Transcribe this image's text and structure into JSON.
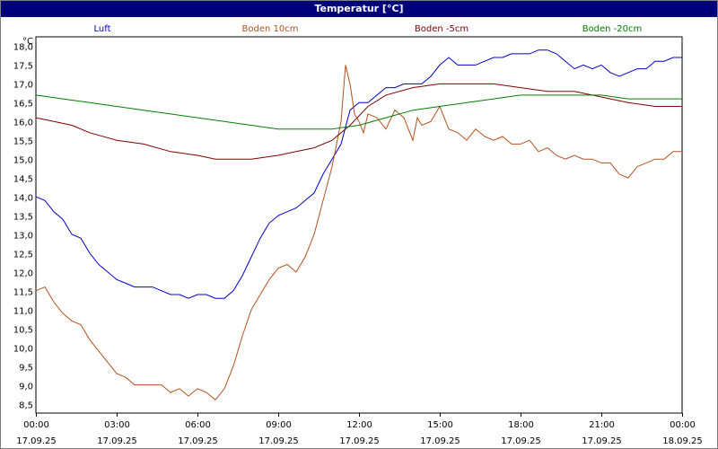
{
  "window": {
    "title": "Temperatur [°C]"
  },
  "chart_data": {
    "type": "line",
    "title": "Temperatur [°C]",
    "ylabel": "°C",
    "xlabel": "",
    "ylim": [
      8.25,
      18.25
    ],
    "xlim": [
      "17.09.25 00:00",
      "18.09.25 00:00"
    ],
    "grid": true,
    "legend_position": "top",
    "y_ticks": [
      "18,0",
      "17,5",
      "17,0",
      "16,5",
      "16,0",
      "15,5",
      "15,0",
      "14,5",
      "14,0",
      "13,5",
      "13,0",
      "12,5",
      "12,0",
      "11,5",
      "11,0",
      "10,5",
      "10,0",
      "9,5",
      "9,0",
      "8,5"
    ],
    "x_ticks": [
      {
        "time": "00:00",
        "date": "17.09.25"
      },
      {
        "time": "03:00",
        "date": "17.09.25"
      },
      {
        "time": "06:00",
        "date": "17.09.25"
      },
      {
        "time": "09:00",
        "date": "17.09.25"
      },
      {
        "time": "12:00",
        "date": "17.09.25"
      },
      {
        "time": "15:00",
        "date": "17.09.25"
      },
      {
        "time": "18:00",
        "date": "17.09.25"
      },
      {
        "time": "21:00",
        "date": "17.09.25"
      },
      {
        "time": "00:00",
        "date": "18.09.25"
      }
    ],
    "series": [
      {
        "name": "Luft",
        "color": "#0000c8",
        "points": [
          [
            "17.09.25 00:00",
            14.0
          ],
          [
            "17.09.25 00:20",
            13.9
          ],
          [
            "17.09.25 00:40",
            13.6
          ],
          [
            "17.09.25 01:00",
            13.4
          ],
          [
            "17.09.25 01:20",
            13.0
          ],
          [
            "17.09.25 01:40",
            12.9
          ],
          [
            "17.09.25 02:00",
            12.5
          ],
          [
            "17.09.25 02:20",
            12.2
          ],
          [
            "17.09.25 02:40",
            12.0
          ],
          [
            "17.09.25 03:00",
            11.8
          ],
          [
            "17.09.25 03:20",
            11.7
          ],
          [
            "17.09.25 03:40",
            11.6
          ],
          [
            "17.09.25 04:00",
            11.6
          ],
          [
            "17.09.25 04:20",
            11.6
          ],
          [
            "17.09.25 04:40",
            11.5
          ],
          [
            "17.09.25 05:00",
            11.4
          ],
          [
            "17.09.25 05:20",
            11.4
          ],
          [
            "17.09.25 05:40",
            11.3
          ],
          [
            "17.09.25 06:00",
            11.4
          ],
          [
            "17.09.25 06:20",
            11.4
          ],
          [
            "17.09.25 06:40",
            11.3
          ],
          [
            "17.09.25 07:00",
            11.3
          ],
          [
            "17.09.25 07:20",
            11.5
          ],
          [
            "17.09.25 07:40",
            11.9
          ],
          [
            "17.09.25 08:00",
            12.4
          ],
          [
            "17.09.25 08:20",
            12.9
          ],
          [
            "17.09.25 08:40",
            13.3
          ],
          [
            "17.09.25 09:00",
            13.5
          ],
          [
            "17.09.25 09:20",
            13.6
          ],
          [
            "17.09.25 09:40",
            13.7
          ],
          [
            "17.09.25 10:00",
            13.9
          ],
          [
            "17.09.25 10:20",
            14.1
          ],
          [
            "17.09.25 10:40",
            14.6
          ],
          [
            "17.09.25 11:00",
            15.0
          ],
          [
            "17.09.25 11:20",
            15.4
          ],
          [
            "17.09.25 11:40",
            16.3
          ],
          [
            "17.09.25 12:00",
            16.5
          ],
          [
            "17.09.25 12:20",
            16.5
          ],
          [
            "17.09.25 12:40",
            16.7
          ],
          [
            "17.09.25 13:00",
            16.9
          ],
          [
            "17.09.25 13:20",
            16.9
          ],
          [
            "17.09.25 13:40",
            17.0
          ],
          [
            "17.09.25 14:00",
            17.0
          ],
          [
            "17.09.25 14:20",
            17.0
          ],
          [
            "17.09.25 14:40",
            17.2
          ],
          [
            "17.09.25 15:00",
            17.5
          ],
          [
            "17.09.25 15:20",
            17.7
          ],
          [
            "17.09.25 15:40",
            17.5
          ],
          [
            "17.09.25 16:00",
            17.5
          ],
          [
            "17.09.25 16:20",
            17.5
          ],
          [
            "17.09.25 16:40",
            17.6
          ],
          [
            "17.09.25 17:00",
            17.7
          ],
          [
            "17.09.25 17:20",
            17.7
          ],
          [
            "17.09.25 17:40",
            17.8
          ],
          [
            "17.09.25 18:00",
            17.8
          ],
          [
            "17.09.25 18:20",
            17.8
          ],
          [
            "17.09.25 18:40",
            17.9
          ],
          [
            "17.09.25 19:00",
            17.9
          ],
          [
            "17.09.25 19:20",
            17.8
          ],
          [
            "17.09.25 19:40",
            17.6
          ],
          [
            "17.09.25 20:00",
            17.4
          ],
          [
            "17.09.25 20:20",
            17.5
          ],
          [
            "17.09.25 20:40",
            17.4
          ],
          [
            "17.09.25 21:00",
            17.5
          ],
          [
            "17.09.25 21:20",
            17.3
          ],
          [
            "17.09.25 21:40",
            17.2
          ],
          [
            "17.09.25 22:00",
            17.3
          ],
          [
            "17.09.25 22:20",
            17.4
          ],
          [
            "17.09.25 22:40",
            17.4
          ],
          [
            "17.09.25 23:00",
            17.6
          ],
          [
            "17.09.25 23:20",
            17.6
          ],
          [
            "17.09.25 23:40",
            17.7
          ],
          [
            "18.09.25 00:00",
            17.7
          ]
        ]
      },
      {
        "name": "Boden 10cm",
        "color": "#b4501e",
        "points": [
          [
            "17.09.25 00:00",
            11.5
          ],
          [
            "17.09.25 00:20",
            11.6
          ],
          [
            "17.09.25 00:40",
            11.2
          ],
          [
            "17.09.25 01:00",
            10.9
          ],
          [
            "17.09.25 01:20",
            10.7
          ],
          [
            "17.09.25 01:40",
            10.6
          ],
          [
            "17.09.25 02:00",
            10.2
          ],
          [
            "17.09.25 02:20",
            9.9
          ],
          [
            "17.09.25 02:40",
            9.6
          ],
          [
            "17.09.25 03:00",
            9.3
          ],
          [
            "17.09.25 03:20",
            9.2
          ],
          [
            "17.09.25 03:40",
            9.0
          ],
          [
            "17.09.25 04:00",
            9.0
          ],
          [
            "17.09.25 04:20",
            9.0
          ],
          [
            "17.09.25 04:40",
            9.0
          ],
          [
            "17.09.25 05:00",
            8.8
          ],
          [
            "17.09.25 05:20",
            8.9
          ],
          [
            "17.09.25 05:40",
            8.7
          ],
          [
            "17.09.25 06:00",
            8.9
          ],
          [
            "17.09.25 06:20",
            8.8
          ],
          [
            "17.09.25 06:40",
            8.6
          ],
          [
            "17.09.25 07:00",
            8.9
          ],
          [
            "17.09.25 07:20",
            9.5
          ],
          [
            "17.09.25 07:40",
            10.3
          ],
          [
            "17.09.25 08:00",
            11.0
          ],
          [
            "17.09.25 08:20",
            11.4
          ],
          [
            "17.09.25 08:40",
            11.8
          ],
          [
            "17.09.25 09:00",
            12.1
          ],
          [
            "17.09.25 09:20",
            12.2
          ],
          [
            "17.09.25 09:40",
            12.0
          ],
          [
            "17.09.25 10:00",
            12.4
          ],
          [
            "17.09.25 10:20",
            13.0
          ],
          [
            "17.09.25 10:40",
            13.9
          ],
          [
            "17.09.25 11:00",
            14.8
          ],
          [
            "17.09.25 11:20",
            16.0
          ],
          [
            "17.09.25 11:30",
            17.5
          ],
          [
            "17.09.25 11:40",
            17.0
          ],
          [
            "17.09.25 11:50",
            16.2
          ],
          [
            "17.09.25 12:00",
            16.0
          ],
          [
            "17.09.25 12:10",
            15.7
          ],
          [
            "17.09.25 12:20",
            16.2
          ],
          [
            "17.09.25 12:40",
            16.1
          ],
          [
            "17.09.25 13:00",
            15.8
          ],
          [
            "17.09.25 13:20",
            16.3
          ],
          [
            "17.09.25 13:40",
            16.1
          ],
          [
            "17.09.25 14:00",
            15.5
          ],
          [
            "17.09.25 14:10",
            16.1
          ],
          [
            "17.09.25 14:20",
            15.9
          ],
          [
            "17.09.25 14:40",
            16.0
          ],
          [
            "17.09.25 15:00",
            16.4
          ],
          [
            "17.09.25 15:20",
            15.8
          ],
          [
            "17.09.25 15:40",
            15.7
          ],
          [
            "17.09.25 16:00",
            15.5
          ],
          [
            "17.09.25 16:20",
            15.8
          ],
          [
            "17.09.25 16:40",
            15.6
          ],
          [
            "17.09.25 17:00",
            15.5
          ],
          [
            "17.09.25 17:20",
            15.6
          ],
          [
            "17.09.25 17:40",
            15.4
          ],
          [
            "17.09.25 18:00",
            15.4
          ],
          [
            "17.09.25 18:20",
            15.5
          ],
          [
            "17.09.25 18:40",
            15.2
          ],
          [
            "17.09.25 19:00",
            15.3
          ],
          [
            "17.09.25 19:20",
            15.1
          ],
          [
            "17.09.25 19:40",
            15.0
          ],
          [
            "17.09.25 20:00",
            15.1
          ],
          [
            "17.09.25 20:20",
            15.0
          ],
          [
            "17.09.25 20:40",
            15.0
          ],
          [
            "17.09.25 21:00",
            14.9
          ],
          [
            "17.09.25 21:20",
            14.9
          ],
          [
            "17.09.25 21:40",
            14.6
          ],
          [
            "17.09.25 22:00",
            14.5
          ],
          [
            "17.09.25 22:20",
            14.8
          ],
          [
            "17.09.25 22:40",
            14.9
          ],
          [
            "17.09.25 23:00",
            15.0
          ],
          [
            "17.09.25 23:20",
            15.0
          ],
          [
            "17.09.25 23:40",
            15.2
          ],
          [
            "18.09.25 00:00",
            15.2
          ]
        ]
      },
      {
        "name": "Boden -5cm",
        "color": "#800000",
        "points": [
          [
            "17.09.25 00:00",
            16.1
          ],
          [
            "17.09.25 00:40",
            16.0
          ],
          [
            "17.09.25 01:20",
            15.9
          ],
          [
            "17.09.25 02:00",
            15.7
          ],
          [
            "17.09.25 03:00",
            15.5
          ],
          [
            "17.09.25 04:00",
            15.4
          ],
          [
            "17.09.25 05:00",
            15.2
          ],
          [
            "17.09.25 06:00",
            15.1
          ],
          [
            "17.09.25 06:40",
            15.0
          ],
          [
            "17.09.25 08:00",
            15.0
          ],
          [
            "17.09.25 09:00",
            15.1
          ],
          [
            "17.09.25 09:40",
            15.2
          ],
          [
            "17.09.25 10:20",
            15.3
          ],
          [
            "17.09.25 11:00",
            15.5
          ],
          [
            "17.09.25 11:40",
            15.9
          ],
          [
            "17.09.25 12:20",
            16.4
          ],
          [
            "17.09.25 13:00",
            16.7
          ],
          [
            "17.09.25 14:00",
            16.9
          ],
          [
            "17.09.25 15:00",
            17.0
          ],
          [
            "17.09.25 17:00",
            17.0
          ],
          [
            "17.09.25 18:00",
            16.9
          ],
          [
            "17.09.25 19:00",
            16.8
          ],
          [
            "17.09.25 20:00",
            16.8
          ],
          [
            "17.09.25 20:40",
            16.7
          ],
          [
            "17.09.25 21:20",
            16.6
          ],
          [
            "17.09.25 22:00",
            16.5
          ],
          [
            "17.09.25 23:00",
            16.4
          ],
          [
            "18.09.25 00:00",
            16.4
          ]
        ]
      },
      {
        "name": "Boden -20cm",
        "color": "#008000",
        "points": [
          [
            "17.09.25 00:00",
            16.7
          ],
          [
            "17.09.25 01:00",
            16.6
          ],
          [
            "17.09.25 02:00",
            16.5
          ],
          [
            "17.09.25 03:00",
            16.4
          ],
          [
            "17.09.25 04:00",
            16.3
          ],
          [
            "17.09.25 05:00",
            16.2
          ],
          [
            "17.09.25 06:00",
            16.1
          ],
          [
            "17.09.25 07:00",
            16.0
          ],
          [
            "17.09.25 08:00",
            15.9
          ],
          [
            "17.09.25 09:00",
            15.8
          ],
          [
            "17.09.25 11:00",
            15.8
          ],
          [
            "17.09.25 12:00",
            15.9
          ],
          [
            "17.09.25 13:00",
            16.1
          ],
          [
            "17.09.25 14:00",
            16.3
          ],
          [
            "17.09.25 15:00",
            16.4
          ],
          [
            "17.09.25 16:00",
            16.5
          ],
          [
            "17.09.25 17:00",
            16.6
          ],
          [
            "17.09.25 18:00",
            16.7
          ],
          [
            "17.09.25 21:00",
            16.7
          ],
          [
            "17.09.25 22:00",
            16.6
          ],
          [
            "18.09.25 00:00",
            16.6
          ]
        ]
      }
    ]
  }
}
